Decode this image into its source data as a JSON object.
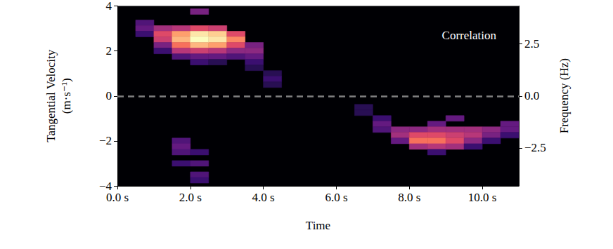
{
  "chart_data": {
    "type": "heatmap",
    "xlabel": "Time",
    "ylabel": "Tangential Velocity (m·s⁻¹)",
    "y2label": "Frequency (Hz)",
    "annotation": "Correlation",
    "color": "magma",
    "grid": false,
    "xlim": [
      0,
      11
    ],
    "xticks": [
      {
        "value": 0,
        "label": "0.0 s"
      },
      {
        "value": 2,
        "label": "2.0 s"
      },
      {
        "value": 4,
        "label": "4.0 s"
      },
      {
        "value": 6,
        "label": "6.0 s"
      },
      {
        "value": 8,
        "label": "8.0 s"
      },
      {
        "value": 10,
        "label": "10.0 s"
      }
    ],
    "ylim": [
      -4,
      4
    ],
    "yticks": [
      {
        "value": -4,
        "label": "−4"
      },
      {
        "value": -2,
        "label": "−2"
      },
      0,
      2,
      4
    ],
    "y2lim": [
      -4.33,
      4.33
    ],
    "y2ticks": [
      {
        "value": -2.5,
        "label": "−2.5"
      },
      {
        "value": 0,
        "label": "0.0"
      },
      {
        "value": 2.5,
        "label": "2.5"
      }
    ],
    "reference_line": 0,
    "zlim": [
      0,
      1
    ],
    "cell_width": 0.5,
    "cell_height": 0.25,
    "cells": [
      [
        0.75,
        3.25,
        0.25
      ],
      [
        0.75,
        3.0,
        0.3
      ],
      [
        0.75,
        2.75,
        0.2
      ],
      [
        1.25,
        3.0,
        0.45
      ],
      [
        1.25,
        2.75,
        0.6
      ],
      [
        1.25,
        2.5,
        0.55
      ],
      [
        1.25,
        2.25,
        0.35
      ],
      [
        1.25,
        2.0,
        0.2
      ],
      [
        1.75,
        3.0,
        0.5
      ],
      [
        1.75,
        2.75,
        0.8
      ],
      [
        1.75,
        2.5,
        0.85
      ],
      [
        1.75,
        2.25,
        0.7
      ],
      [
        1.75,
        2.0,
        0.5
      ],
      [
        1.75,
        1.75,
        0.25
      ],
      [
        2.25,
        3.75,
        0.35
      ],
      [
        2.25,
        3.0,
        0.6
      ],
      [
        2.25,
        2.75,
        0.95
      ],
      [
        2.25,
        2.5,
        1.0
      ],
      [
        2.25,
        2.25,
        0.85
      ],
      [
        2.25,
        2.0,
        0.55
      ],
      [
        2.25,
        1.75,
        0.3
      ],
      [
        2.25,
        1.5,
        0.2
      ],
      [
        2.75,
        3.0,
        0.55
      ],
      [
        2.75,
        2.75,
        0.9
      ],
      [
        2.75,
        2.5,
        0.95
      ],
      [
        2.75,
        2.25,
        0.8
      ],
      [
        2.75,
        2.0,
        0.5
      ],
      [
        2.75,
        1.75,
        0.3
      ],
      [
        2.75,
        1.5,
        0.15
      ],
      [
        3.25,
        2.75,
        0.6
      ],
      [
        3.25,
        2.5,
        0.75
      ],
      [
        3.25,
        2.25,
        0.6
      ],
      [
        3.25,
        2.0,
        0.4
      ],
      [
        3.25,
        1.75,
        0.25
      ],
      [
        3.75,
        2.25,
        0.35
      ],
      [
        3.75,
        2.0,
        0.4
      ],
      [
        3.75,
        1.75,
        0.3
      ],
      [
        3.75,
        1.5,
        0.2
      ],
      [
        3.75,
        1.25,
        0.15
      ],
      [
        4.25,
        1.0,
        0.15
      ],
      [
        4.25,
        0.75,
        0.2
      ],
      [
        4.25,
        0.5,
        0.15
      ],
      [
        1.75,
        -2.0,
        0.25
      ],
      [
        1.75,
        -2.25,
        0.3
      ],
      [
        1.75,
        -2.5,
        0.25
      ],
      [
        1.75,
        -3.0,
        0.2
      ],
      [
        2.25,
        -2.5,
        0.2
      ],
      [
        2.25,
        -3.0,
        0.25
      ],
      [
        2.25,
        -3.5,
        0.25
      ],
      [
        2.25,
        -3.75,
        0.2
      ],
      [
        6.75,
        -0.5,
        0.15
      ],
      [
        6.75,
        -0.75,
        0.15
      ],
      [
        7.25,
        -1.0,
        0.2
      ],
      [
        7.25,
        -1.25,
        0.3
      ],
      [
        7.25,
        -1.5,
        0.25
      ],
      [
        7.75,
        -1.5,
        0.4
      ],
      [
        7.75,
        -1.75,
        0.45
      ],
      [
        7.75,
        -2.0,
        0.3
      ],
      [
        8.25,
        -1.5,
        0.4
      ],
      [
        8.25,
        -1.75,
        0.6
      ],
      [
        8.25,
        -2.0,
        0.7
      ],
      [
        8.25,
        -2.25,
        0.45
      ],
      [
        8.75,
        -1.25,
        0.3
      ],
      [
        8.75,
        -1.5,
        0.45
      ],
      [
        8.75,
        -1.75,
        0.6
      ],
      [
        8.75,
        -2.0,
        0.7
      ],
      [
        8.75,
        -2.25,
        0.5
      ],
      [
        8.75,
        -2.5,
        0.2
      ],
      [
        9.25,
        -1.0,
        0.3
      ],
      [
        9.25,
        -1.5,
        0.45
      ],
      [
        9.25,
        -1.75,
        0.55
      ],
      [
        9.25,
        -2.0,
        0.6
      ],
      [
        9.25,
        -2.25,
        0.45
      ],
      [
        9.75,
        -1.5,
        0.45
      ],
      [
        9.75,
        -1.75,
        0.5
      ],
      [
        9.75,
        -2.0,
        0.4
      ],
      [
        9.75,
        -2.25,
        0.2
      ],
      [
        10.25,
        -1.5,
        0.4
      ],
      [
        10.25,
        -1.75,
        0.35
      ],
      [
        10.25,
        -2.0,
        0.2
      ],
      [
        10.75,
        -1.25,
        0.3
      ],
      [
        10.75,
        -1.5,
        0.3
      ],
      [
        10.75,
        -1.75,
        0.2
      ]
    ]
  }
}
